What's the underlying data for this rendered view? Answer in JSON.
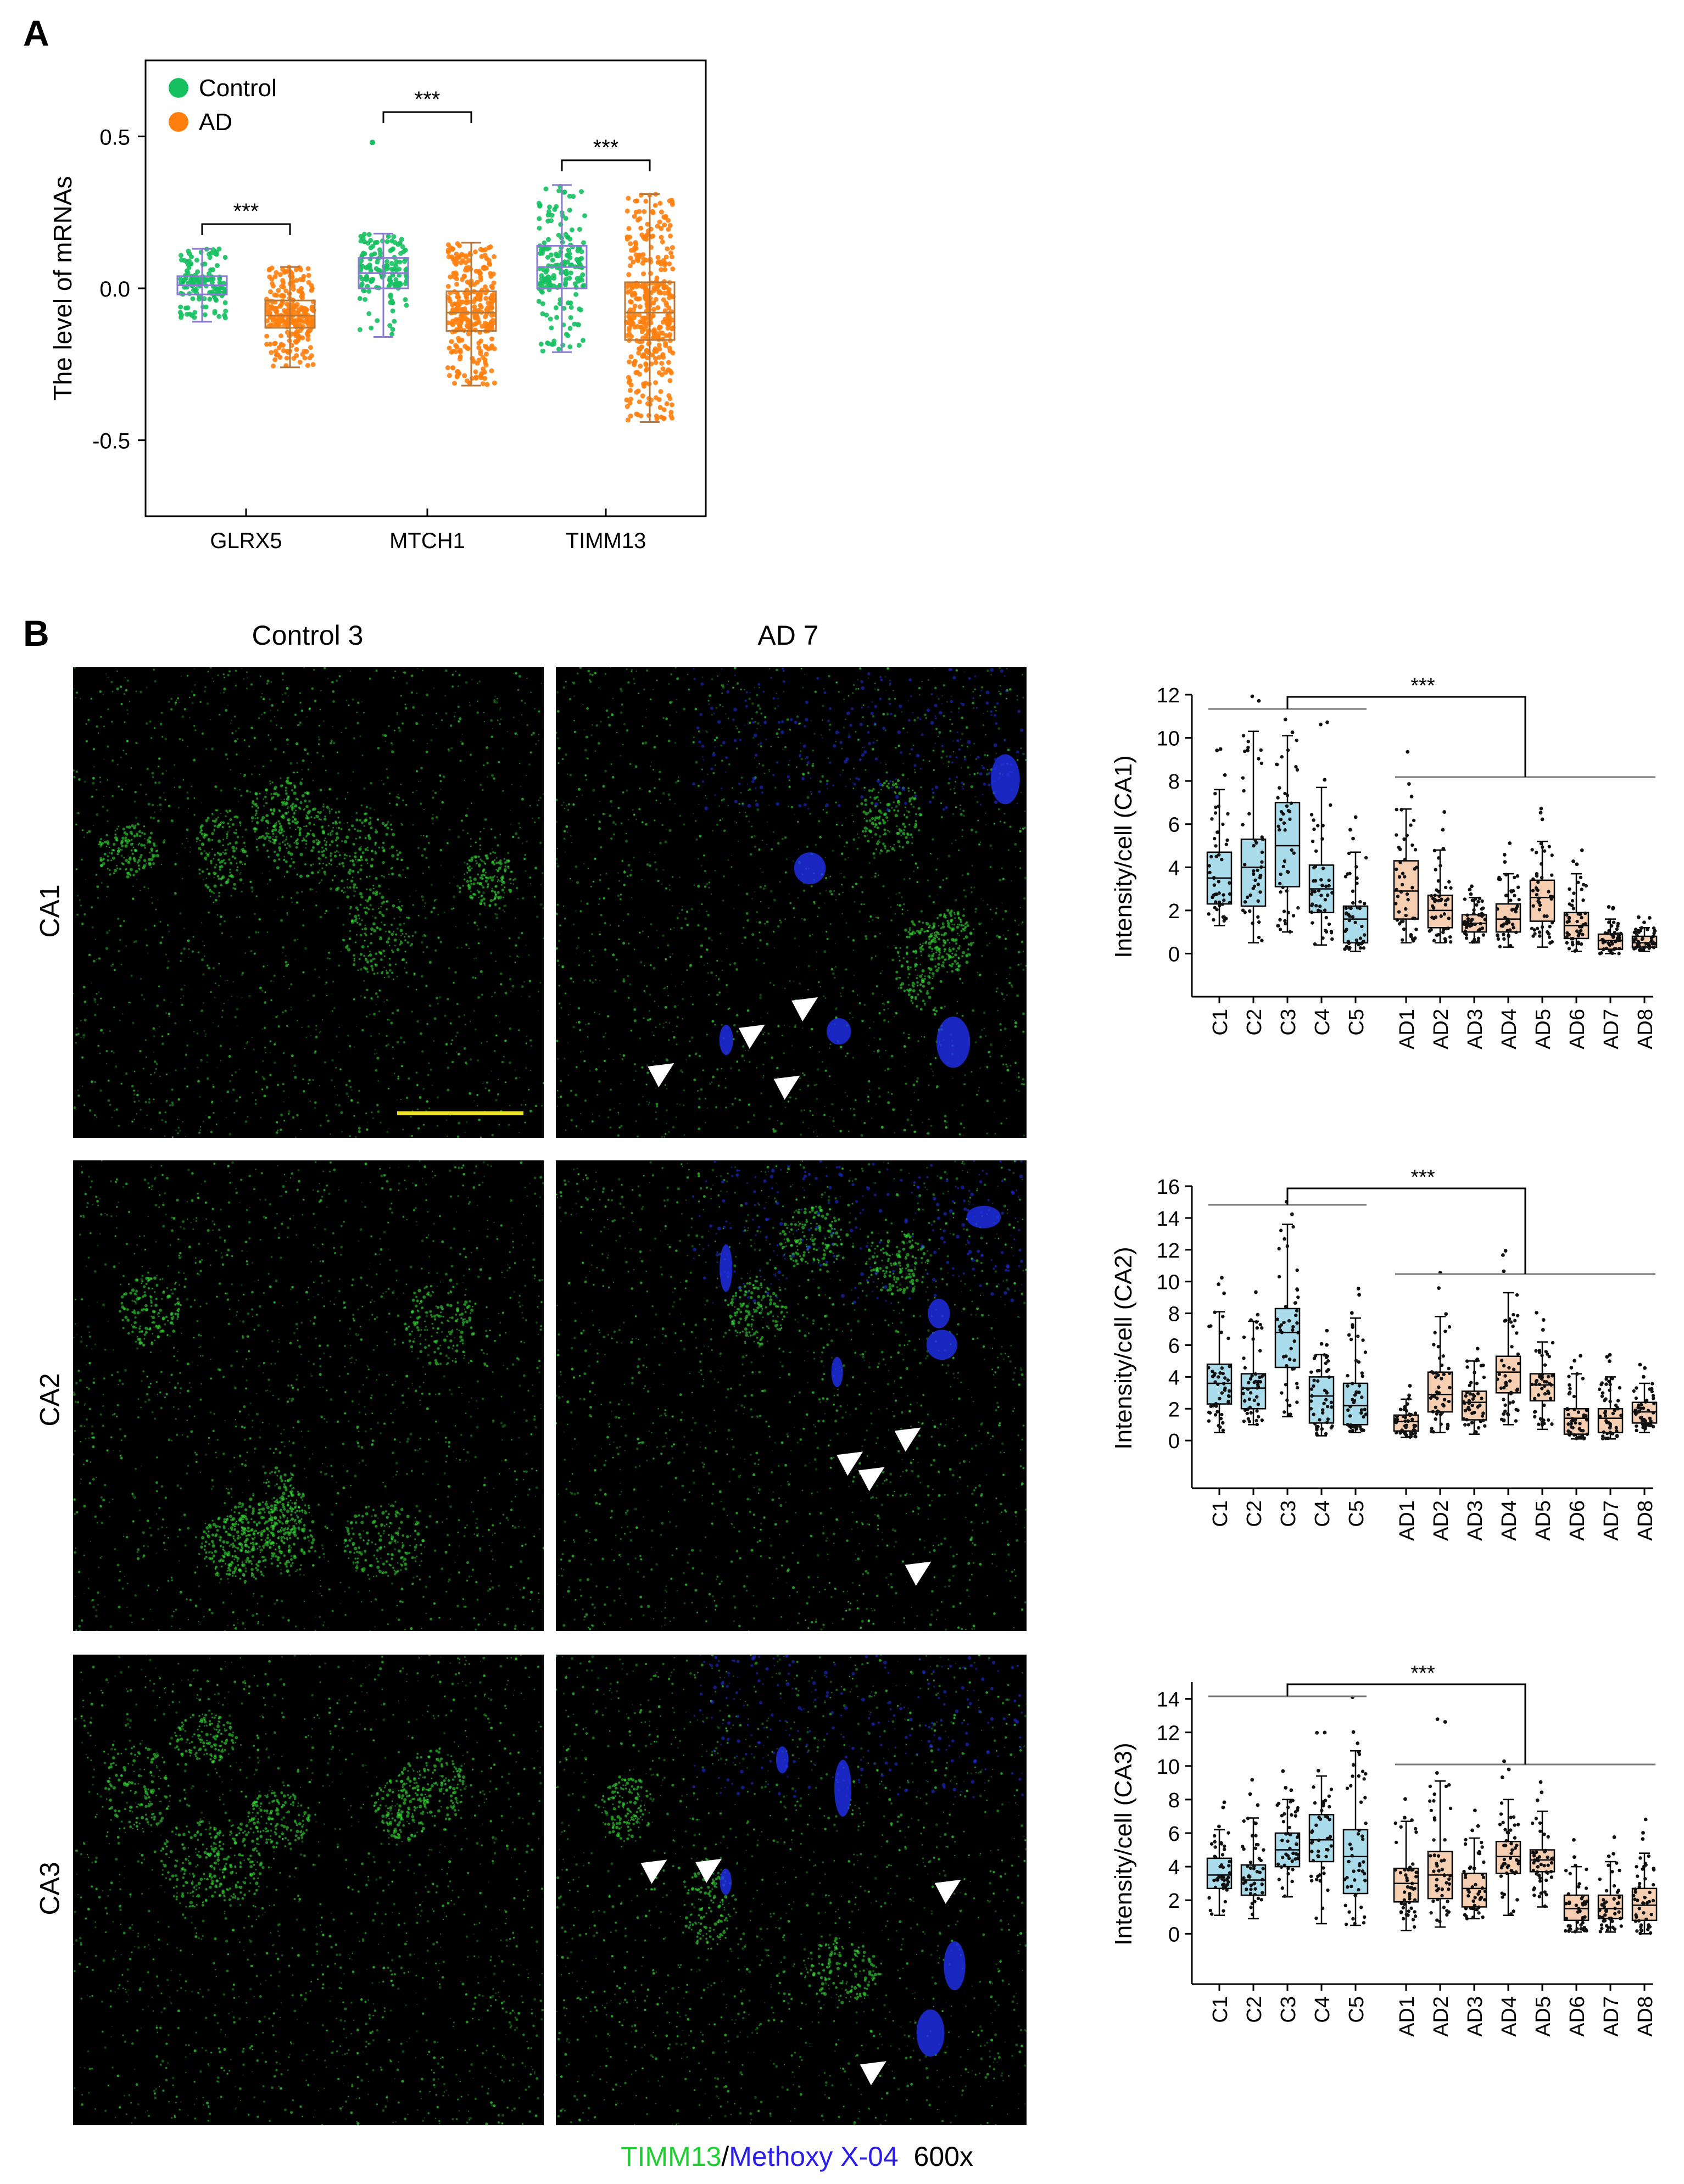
{
  "panel_a": {
    "letter": "A",
    "legend": [
      {
        "label": "Control",
        "color": "#16c060"
      },
      {
        "label": "AD",
        "color": "#ff7f0e"
      }
    ],
    "chart_data": {
      "type": "box",
      "ylabel": "The level of mRNAs",
      "ylim": [
        -0.75,
        0.75
      ],
      "yticks": [
        -0.5,
        0.0,
        0.5
      ],
      "ytick_labels": [
        "-0.5",
        "0.0",
        "0.5"
      ],
      "categories": [
        "GLRX5",
        "MTCH1",
        "TIMM13"
      ],
      "significance": [
        "***",
        "***",
        "***"
      ],
      "series": [
        {
          "name": "Control",
          "color": "#16c060",
          "box_color": "#8a7ad0",
          "boxes": [
            {
              "q1": -0.02,
              "median": 0.01,
              "q3": 0.04,
              "whisker_low": -0.11,
              "whisker_high": 0.13,
              "n": 140
            },
            {
              "q1": 0.0,
              "median": 0.05,
              "q3": 0.1,
              "whisker_low": -0.16,
              "whisker_high": 0.18,
              "n": 140,
              "outliers": [
                0.48
              ]
            },
            {
              "q1": 0.0,
              "median": 0.07,
              "q3": 0.14,
              "whisker_low": -0.21,
              "whisker_high": 0.34,
              "n": 180
            }
          ]
        },
        {
          "name": "AD",
          "color": "#ff7f0e",
          "box_color": "#b8793a",
          "boxes": [
            {
              "q1": -0.13,
              "median": -0.09,
              "q3": -0.04,
              "whisker_low": -0.26,
              "whisker_high": 0.07,
              "n": 260
            },
            {
              "q1": -0.14,
              "median": -0.08,
              "q3": -0.01,
              "whisker_low": -0.32,
              "whisker_high": 0.15,
              "n": 300
            },
            {
              "q1": -0.17,
              "median": -0.08,
              "q3": 0.02,
              "whisker_low": -0.44,
              "whisker_high": 0.31,
              "n": 380
            }
          ]
        }
      ]
    }
  },
  "panel_b": {
    "letter": "B",
    "col_titles": [
      "Control 3",
      "AD 7"
    ],
    "row_labels": [
      "CA1",
      "CA2",
      "CA3"
    ],
    "caption": {
      "part1": "TIMM13",
      "sep": "/",
      "part2": "Methoxy X-04",
      "mag": "600x"
    },
    "colors": {
      "control_box": "#a9dbea",
      "ad_box": "#f6cfb2",
      "green": "#33dd33",
      "blue": "#2030f0"
    },
    "chart_data": [
      {
        "type": "box",
        "ylabel": "Intensity/cell (CA1)",
        "ylim": [
          -2,
          12
        ],
        "yticks": [
          0,
          2,
          4,
          6,
          8,
          10,
          12
        ],
        "categories": [
          "C1",
          "C2",
          "C3",
          "C4",
          "C5",
          "AD1",
          "AD2",
          "AD3",
          "AD4",
          "AD5",
          "AD6",
          "AD7",
          "AD8"
        ],
        "significance": "***",
        "boxes": [
          {
            "q1": 2.3,
            "median": 3.5,
            "q3": 4.7,
            "whisker_low": 1.3,
            "whisker_high": 7.6
          },
          {
            "q1": 2.2,
            "median": 4.0,
            "q3": 5.3,
            "whisker_low": 0.5,
            "whisker_high": 10.3
          },
          {
            "q1": 3.1,
            "median": 5.0,
            "q3": 7.0,
            "whisker_low": 1.0,
            "whisker_high": 10.1
          },
          {
            "q1": 1.9,
            "median": 3.0,
            "q3": 4.1,
            "whisker_low": 0.4,
            "whisker_high": 7.7
          },
          {
            "q1": 0.5,
            "median": 1.6,
            "q3": 2.2,
            "whisker_low": 0.1,
            "whisker_high": 4.7
          },
          {
            "q1": 1.6,
            "median": 2.9,
            "q3": 4.3,
            "whisker_low": 0.5,
            "whisker_high": 6.7
          },
          {
            "q1": 1.2,
            "median": 2.0,
            "q3": 2.7,
            "whisker_low": 0.5,
            "whisker_high": 4.8
          },
          {
            "q1": 1.0,
            "median": 1.4,
            "q3": 1.8,
            "whisker_low": 0.5,
            "whisker_high": 2.6
          },
          {
            "q1": 1.0,
            "median": 1.6,
            "q3": 2.3,
            "whisker_low": 0.3,
            "whisker_high": 3.7
          },
          {
            "q1": 1.5,
            "median": 2.6,
            "q3": 3.4,
            "whisker_low": 0.3,
            "whisker_high": 5.2
          },
          {
            "q1": 0.7,
            "median": 1.3,
            "q3": 1.9,
            "whisker_low": 0.1,
            "whisker_high": 3.7
          },
          {
            "q1": 0.2,
            "median": 0.6,
            "q3": 0.9,
            "whisker_low": 0.0,
            "whisker_high": 1.6
          },
          {
            "q1": 0.3,
            "median": 0.5,
            "q3": 0.8,
            "whisker_low": 0.1,
            "whisker_high": 1.2
          }
        ]
      },
      {
        "type": "box",
        "ylabel": "Intensity/cell (CA2)",
        "ylim": [
          -3,
          16
        ],
        "yticks": [
          0,
          2,
          4,
          6,
          8,
          10,
          12,
          14,
          16
        ],
        "categories": [
          "C1",
          "C2",
          "C3",
          "C4",
          "C5",
          "AD1",
          "AD2",
          "AD3",
          "AD4",
          "AD5",
          "AD6",
          "AD7",
          "AD8"
        ],
        "significance": "***",
        "boxes": [
          {
            "q1": 2.3,
            "median": 3.6,
            "q3": 4.8,
            "whisker_low": 0.5,
            "whisker_high": 8.1
          },
          {
            "q1": 2.0,
            "median": 3.3,
            "q3": 4.2,
            "whisker_low": 1.0,
            "whisker_high": 7.5
          },
          {
            "q1": 4.6,
            "median": 6.8,
            "q3": 8.3,
            "whisker_low": 1.5,
            "whisker_high": 13.6
          },
          {
            "q1": 1.1,
            "median": 2.8,
            "q3": 4.0,
            "whisker_low": 0.3,
            "whisker_high": 5.4
          },
          {
            "q1": 1.0,
            "median": 2.2,
            "q3": 3.6,
            "whisker_low": 0.5,
            "whisker_high": 7.7
          },
          {
            "q1": 0.6,
            "median": 1.2,
            "q3": 1.6,
            "whisker_low": 0.2,
            "whisker_high": 2.6
          },
          {
            "q1": 1.8,
            "median": 2.9,
            "q3": 4.3,
            "whisker_low": 0.5,
            "whisker_high": 7.8
          },
          {
            "q1": 1.3,
            "median": 2.4,
            "q3": 3.1,
            "whisker_low": 0.4,
            "whisker_high": 5.0
          },
          {
            "q1": 3.0,
            "median": 4.3,
            "q3": 5.3,
            "whisker_low": 1.0,
            "whisker_high": 9.3
          },
          {
            "q1": 2.5,
            "median": 3.5,
            "q3": 4.2,
            "whisker_low": 0.7,
            "whisker_high": 6.2
          },
          {
            "q1": 0.4,
            "median": 1.4,
            "q3": 2.0,
            "whisker_low": 0.1,
            "whisker_high": 4.2
          },
          {
            "q1": 0.5,
            "median": 1.4,
            "q3": 2.0,
            "whisker_low": 0.1,
            "whisker_high": 4.0
          },
          {
            "q1": 1.1,
            "median": 1.8,
            "q3": 2.4,
            "whisker_low": 0.5,
            "whisker_high": 3.6
          }
        ]
      },
      {
        "type": "box",
        "ylabel": "Intensity/cell (CA3)",
        "ylim": [
          -3,
          15
        ],
        "yticks": [
          0,
          2,
          4,
          6,
          8,
          10,
          12,
          14
        ],
        "categories": [
          "C1",
          "C2",
          "C3",
          "C4",
          "C5",
          "AD1",
          "AD2",
          "AD3",
          "AD4",
          "AD5",
          "AD6",
          "AD7",
          "AD8"
        ],
        "significance": "***",
        "boxes": [
          {
            "q1": 2.7,
            "median": 3.5,
            "q3": 4.5,
            "whisker_low": 1.1,
            "whisker_high": 6.2
          },
          {
            "q1": 2.3,
            "median": 3.2,
            "q3": 4.1,
            "whisker_low": 0.9,
            "whisker_high": 6.9
          },
          {
            "q1": 4.0,
            "median": 5.0,
            "q3": 6.0,
            "whisker_low": 2.2,
            "whisker_high": 8.0
          },
          {
            "q1": 4.3,
            "median": 5.6,
            "q3": 7.1,
            "whisker_low": 0.6,
            "whisker_high": 9.4
          },
          {
            "q1": 2.4,
            "median": 4.6,
            "q3": 6.2,
            "whisker_low": 0.5,
            "whisker_high": 10.9
          },
          {
            "q1": 1.9,
            "median": 3.0,
            "q3": 3.9,
            "whisker_low": 0.2,
            "whisker_high": 6.7
          },
          {
            "q1": 2.1,
            "median": 3.5,
            "q3": 4.9,
            "whisker_low": 0.4,
            "whisker_high": 9.1
          },
          {
            "q1": 1.6,
            "median": 2.7,
            "q3": 3.6,
            "whisker_low": 0.9,
            "whisker_high": 5.7
          },
          {
            "q1": 3.6,
            "median": 4.6,
            "q3": 5.5,
            "whisker_low": 1.1,
            "whisker_high": 8.0
          },
          {
            "q1": 3.7,
            "median": 4.4,
            "q3": 5.0,
            "whisker_low": 1.6,
            "whisker_high": 7.3
          },
          {
            "q1": 0.8,
            "median": 1.5,
            "q3": 2.3,
            "whisker_low": 0.1,
            "whisker_high": 4.0
          },
          {
            "q1": 0.9,
            "median": 1.5,
            "q3": 2.3,
            "whisker_low": 0.1,
            "whisker_high": 4.3
          },
          {
            "q1": 0.8,
            "median": 1.7,
            "q3": 2.7,
            "whisker_low": 0.0,
            "whisker_high": 4.8
          }
        ]
      }
    ]
  }
}
